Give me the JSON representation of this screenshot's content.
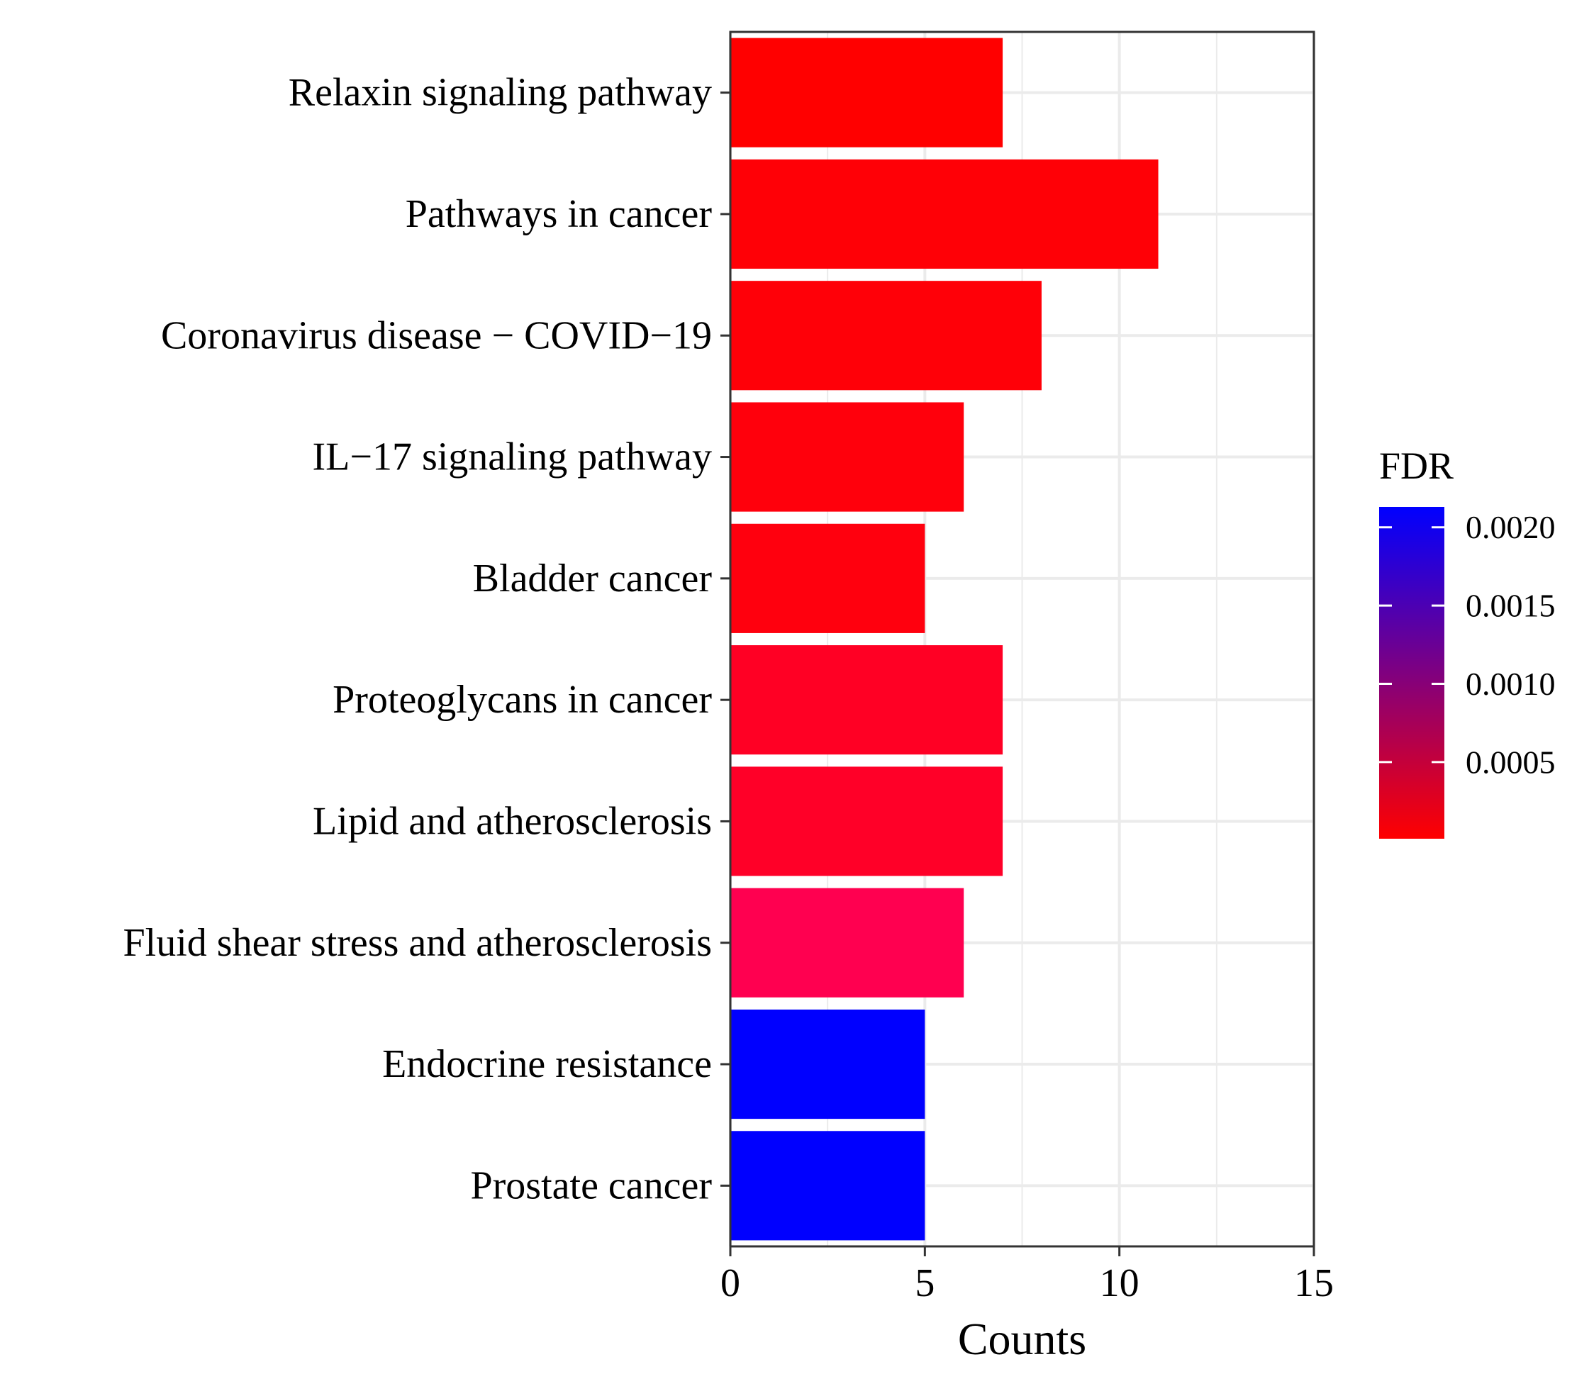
{
  "chart_data": {
    "type": "bar",
    "orientation": "horizontal",
    "title": "",
    "xlabel": "Counts",
    "ylabel": "",
    "xlim": [
      0,
      15
    ],
    "xticks": [
      0,
      5,
      10,
      15
    ],
    "grid": true,
    "categories": [
      "Relaxin signaling pathway",
      "Pathways in cancer",
      "Coronavirus disease − COVID−19",
      "IL−17 signaling pathway",
      "Bladder cancer",
      "Proteoglycans in cancer",
      "Lipid and atherosclerosis",
      "Fluid shear stress and atherosclerosis",
      "Endocrine resistance",
      "Prostate cancer"
    ],
    "values": [
      7,
      11,
      8,
      6,
      5,
      7,
      7,
      6,
      5,
      5
    ],
    "fdr": [
      1e-05,
      2e-05,
      4e-05,
      6e-05,
      8e-05,
      0.00025,
      0.00028,
      0.00042,
      0.00213,
      0.00213
    ],
    "bar_colors": [
      "#ff0000",
      "#ff0006",
      "#ff0008",
      "#ff000c",
      "#ff000e",
      "#ff0024",
      "#ff0028",
      "#ff0050",
      "#0000ff",
      "#0000ff"
    ],
    "legend": {
      "title": "FDR",
      "position": "right",
      "ticks": [
        {
          "value": 0.002,
          "label": "0.0020"
        },
        {
          "value": 0.0015,
          "label": "0.0015"
        },
        {
          "value": 0.001,
          "label": "0.0010"
        },
        {
          "value": 0.0005,
          "label": "0.0005"
        }
      ],
      "range": [
        1e-05,
        0.00213
      ],
      "low_color": "#ff0000",
      "high_color": "#0000ff"
    }
  }
}
